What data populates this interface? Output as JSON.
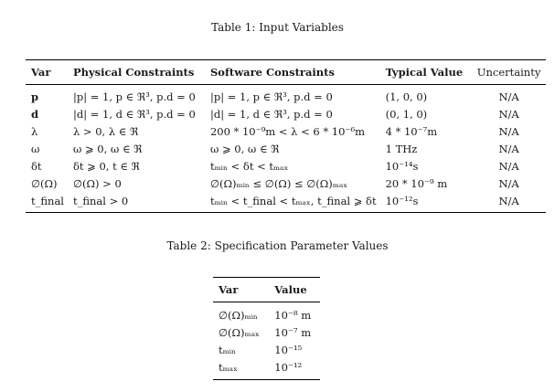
{
  "table1": {
    "caption": "Table 1: Input Variables",
    "headers": [
      "Var",
      "Physical Constraints",
      "Software Constraints",
      "Typical Value",
      "Uncertainty"
    ],
    "rows": [
      [
        "p",
        "|p| = 1, p ∈ ℜ³, p.d = 0",
        "|p| = 1, p ∈ ℜ³, p.d = 0",
        "(1, 0, 0)",
        "N/A"
      ],
      [
        "d",
        "|d| = 1, d ∈ ℜ³, p.d = 0",
        "|d| = 1, d ∈ ℜ³, p.d = 0",
        "(0, 1, 0)",
        "N/A"
      ],
      [
        "λ",
        "λ > 0, λ ∈ ℜ",
        "200 * 10⁻⁹m < λ < 6 * 10⁻⁶m",
        "4 * 10⁻⁷m",
        "N/A"
      ],
      [
        "ω",
        "ω ⩾ 0, ω ∈ ℜ",
        "ω ⩾ 0, ω ∈ ℜ",
        "1 THz",
        "N/A"
      ],
      [
        "δt",
        "δt ⩾ 0, t ∈ ℜ",
        "tₘᵢₙ < δt < tₘₐₓ",
        "10⁻¹⁴s",
        "N/A"
      ],
      [
        "∅(Ω)",
        "∅(Ω) > 0",
        "∅(Ω)ₘᵢₙ ≤ ∅(Ω) ≤ ∅(Ω)ₘₐₓ",
        "20 * 10⁻⁹ m",
        "N/A"
      ],
      [
        "t_final",
        "t_final > 0",
        "tₘᵢₙ < t_final < tₘₐₓ, t_final ⩾ δt",
        "10⁻¹²s",
        "N/A"
      ]
    ]
  },
  "table2": {
    "caption": "Table 2: Specification Parameter Values",
    "headers": [
      "Var",
      "Value"
    ],
    "rows": [
      [
        "∅(Ω)ₘᵢₙ",
        "10⁻⁸ m"
      ],
      [
        "∅(Ω)ₘₐₓ",
        "10⁻⁷ m"
      ],
      [
        "tₘᵢₙ",
        "10⁻¹⁵"
      ],
      [
        "tₘₐₓ",
        "10⁻¹²"
      ]
    ]
  }
}
